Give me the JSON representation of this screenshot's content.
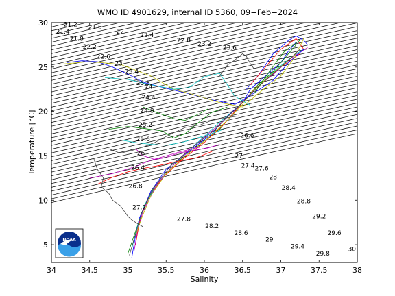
{
  "title": "WMO ID 4901629, internal ID 5360, 09−Feb−2024",
  "chart_data": {
    "type": "scatter",
    "title": "WMO ID 4901629, internal ID 5360, 09−Feb−2024",
    "xlabel": "Salinity",
    "ylabel": "Temperature [°C]",
    "xlim": [
      34,
      38
    ],
    "ylim": [
      3,
      30
    ],
    "xticks": [
      "34",
      "34.5",
      "35",
      "35.5",
      "36",
      "36.5",
      "37",
      "37.5",
      "38"
    ],
    "yticks": [
      "5",
      "10",
      "15",
      "20",
      "25",
      "30"
    ],
    "logo": "NOAA",
    "isopycnal_labels": [
      {
        "text": "21.2",
        "x": 34.25,
        "y": 29.8
      },
      {
        "text": "21.4",
        "x": 34.15,
        "y": 29.0
      },
      {
        "text": "21.6",
        "x": 34.57,
        "y": 29.5
      },
      {
        "text": "21.8",
        "x": 34.33,
        "y": 28.2
      },
      {
        "text": "22",
        "x": 34.9,
        "y": 29.0
      },
      {
        "text": "22.2",
        "x": 34.5,
        "y": 27.3
      },
      {
        "text": "22.4",
        "x": 35.25,
        "y": 28.6
      },
      {
        "text": "22.6",
        "x": 34.68,
        "y": 26.2
      },
      {
        "text": "22.8",
        "x": 35.73,
        "y": 28.0
      },
      {
        "text": "23",
        "x": 34.88,
        "y": 25.4
      },
      {
        "text": "23.2",
        "x": 36.0,
        "y": 27.6
      },
      {
        "text": "23.4",
        "x": 35.05,
        "y": 24.5
      },
      {
        "text": "23.6",
        "x": 36.33,
        "y": 27.2
      },
      {
        "text": "23.8",
        "x": 35.2,
        "y": 23.2
      },
      {
        "text": "24",
        "x": 35.27,
        "y": 22.8
      },
      {
        "text": "24.4",
        "x": 35.27,
        "y": 21.6
      },
      {
        "text": "24.8",
        "x": 35.25,
        "y": 20.1
      },
      {
        "text": "25.2",
        "x": 35.23,
        "y": 18.5
      },
      {
        "text": "25.6",
        "x": 35.2,
        "y": 16.9
      },
      {
        "text": "26",
        "x": 35.17,
        "y": 15.3
      },
      {
        "text": "26.4",
        "x": 35.13,
        "y": 13.7
      },
      {
        "text": "26.6",
        "x": 36.56,
        "y": 17.3
      },
      {
        "text": "27",
        "x": 36.45,
        "y": 15.0
      },
      {
        "text": "26.8",
        "x": 35.1,
        "y": 11.6
      },
      {
        "text": "27.4",
        "x": 36.57,
        "y": 13.9
      },
      {
        "text": "27.6",
        "x": 36.75,
        "y": 13.6
      },
      {
        "text": "28",
        "x": 36.9,
        "y": 12.6
      },
      {
        "text": "27.2",
        "x": 35.15,
        "y": 9.2
      },
      {
        "text": "28.4",
        "x": 37.1,
        "y": 11.4
      },
      {
        "text": "27.8",
        "x": 35.73,
        "y": 7.9
      },
      {
        "text": "28.8",
        "x": 37.3,
        "y": 9.9
      },
      {
        "text": "28.2",
        "x": 36.1,
        "y": 7.1
      },
      {
        "text": "29.2",
        "x": 37.5,
        "y": 8.2
      },
      {
        "text": "28.6",
        "x": 36.48,
        "y": 6.3
      },
      {
        "text": "29.6",
        "x": 37.7,
        "y": 6.3
      },
      {
        "text": "29",
        "x": 36.85,
        "y": 5.6
      },
      {
        "text": "29.4",
        "x": 37.22,
        "y": 4.8
      },
      {
        "text": "29.8",
        "x": 37.55,
        "y": 4.0
      },
      {
        "text": "30",
        "x": 37.93,
        "y": 4.5
      }
    ],
    "series": [
      {
        "color": "#0000ff",
        "x": [
          35.05,
          35.1,
          35.15,
          35.3,
          35.5,
          35.8,
          36.1,
          36.3,
          36.5,
          36.6,
          36.8,
          37.0,
          37.1,
          37.2
        ],
        "y": [
          3.5,
          6,
          8,
          11,
          13.5,
          15.5,
          17.5,
          19.5,
          21,
          22.5,
          24,
          25.5,
          26.8,
          27.8
        ]
      },
      {
        "color": "#008000",
        "x": [
          35.0,
          35.1,
          35.2,
          35.35,
          35.6,
          35.9,
          36.2,
          36.4,
          36.55,
          36.7,
          36.9,
          37.05,
          37.2
        ],
        "y": [
          4,
          6.5,
          9,
          11.5,
          14,
          16,
          18,
          20,
          21.5,
          23,
          24.5,
          26,
          27.5
        ]
      },
      {
        "color": "#ff0000",
        "x": [
          35.1,
          35.15,
          35.25,
          35.45,
          35.7,
          36.0,
          36.25,
          36.45,
          36.6,
          36.8,
          37.0,
          37.25
        ],
        "y": [
          5,
          7.5,
          10,
          12.5,
          14.5,
          16.5,
          18.5,
          20.5,
          22,
          23.5,
          25,
          26.5
        ]
      },
      {
        "color": "#00bfbf",
        "x": [
          35.05,
          35.12,
          35.22,
          35.4,
          35.65,
          35.95,
          36.2,
          36.42,
          36.58,
          36.75,
          36.95,
          37.15,
          37.3
        ],
        "y": [
          4.5,
          7,
          9.5,
          12,
          14.5,
          16.8,
          18.8,
          20.3,
          21.8,
          23.2,
          24.8,
          26.2,
          27
        ]
      },
      {
        "color": "#bf00bf",
        "x": [
          35.08,
          35.13,
          35.2,
          35.38,
          35.6,
          35.85,
          36.15,
          36.38,
          36.56,
          36.72,
          36.92,
          37.1,
          37.35
        ],
        "y": [
          4.2,
          6.8,
          8.8,
          11.8,
          14,
          16,
          18.2,
          20,
          21.6,
          23,
          24.3,
          25.8,
          27.2
        ]
      },
      {
        "color": "#bfbf00",
        "x": [
          35.1,
          35.18,
          35.3,
          35.5,
          35.75,
          36.05,
          36.3,
          36.5,
          36.62,
          36.8,
          37.02,
          37.2,
          37.3
        ],
        "y": [
          6,
          8,
          10.5,
          13,
          15,
          17,
          19,
          20.8,
          22.2,
          23.6,
          25.2,
          26.5,
          28.2
        ]
      },
      {
        "color": "#404040",
        "x": [
          35.02,
          35.1,
          35.18,
          35.32,
          35.55,
          35.82,
          36.12,
          36.35,
          36.52,
          36.68,
          36.88,
          37.08,
          37.25
        ],
        "y": [
          3.8,
          6.2,
          8.6,
          11.2,
          13.8,
          15.8,
          17.8,
          19.8,
          21.2,
          22.6,
          24.1,
          25.6,
          27
        ]
      },
      {
        "color": "#0000ff",
        "x": [
          34.2,
          34.4,
          34.6,
          34.8,
          35.0,
          35.2,
          35.5,
          35.8,
          36.1,
          36.4,
          36.6,
          36.9,
          37.1,
          37.3
        ],
        "y": [
          25.5,
          25.7,
          25.6,
          25.0,
          24.2,
          23.3,
          22.6,
          22.0,
          21.3,
          20.8,
          21.8,
          23.5,
          25.5,
          27
        ]
      },
      {
        "color": "#bfbf00",
        "x": [
          34.1,
          34.5,
          34.9,
          35.3,
          35.6,
          35.9,
          36.2,
          36.5,
          36.7,
          37.0,
          37.2
        ],
        "y": [
          25.3,
          25.6,
          25.3,
          24.0,
          22.5,
          21.8,
          21.0,
          20.5,
          22,
          24,
          26.3
        ]
      },
      {
        "color": "#00bfbf",
        "x": [
          34.7,
          35.0,
          35.3,
          35.6,
          35.8,
          36.0,
          36.2,
          36.4,
          36.6
        ],
        "y": [
          23.8,
          23.6,
          23.0,
          22.5,
          22.7,
          23.9,
          24.3,
          21.7,
          20.7
        ]
      },
      {
        "color": "#008000",
        "x": [
          34.75,
          35.0,
          35.2,
          35.45,
          35.6,
          35.75,
          35.9,
          36.1,
          36.3
        ],
        "y": [
          18.0,
          18.3,
          18.1,
          17.8,
          17.0,
          17.5,
          18.6,
          19.9,
          20.5
        ]
      },
      {
        "color": "#008000",
        "x": [
          35.2,
          35.4,
          35.6,
          35.75,
          35.95,
          36.05
        ],
        "y": [
          20.5,
          19.8,
          19.2,
          19.0,
          19.8,
          20.3
        ]
      },
      {
        "color": "#ff0000",
        "x": [
          34.6,
          34.8,
          35.0,
          35.2,
          35.4,
          35.6,
          35.9,
          36.1
        ],
        "y": [
          11.8,
          12.6,
          13.2,
          13.6,
          13.9,
          14.3,
          14.8,
          15.5
        ]
      },
      {
        "color": "#bf00bf",
        "x": [
          34.5,
          34.8,
          35.1,
          35.3,
          35.5,
          35.7,
          35.95
        ],
        "y": [
          12.5,
          13.0,
          13.8,
          14.5,
          15.0,
          15.5,
          16.0
        ]
      },
      {
        "color": "#404040",
        "x": [
          34.55,
          34.6,
          34.68,
          34.65,
          34.75,
          34.8,
          34.9,
          34.95,
          35.0,
          35.05,
          35.12,
          35.2
        ],
        "y": [
          14.8,
          13.5,
          12.5,
          11.5,
          10.8,
          10.0,
          9.4,
          8.8,
          8.2,
          7.8,
          7.4,
          7.0
        ]
      },
      {
        "color": "#404040",
        "x": [
          34.75,
          34.9,
          35.05,
          35.2,
          35.35,
          35.55,
          35.75,
          35.95,
          36.1,
          36.3,
          36.45
        ],
        "y": [
          15.8,
          15.3,
          15.6,
          16.0,
          16.5,
          17.4,
          18.2,
          18.5,
          19.0,
          19.3,
          19.5
        ]
      },
      {
        "color": "#404040",
        "x": [
          36.2,
          36.3,
          36.4,
          36.5,
          36.55,
          36.6,
          36.65
        ],
        "y": [
          24.0,
          25.2,
          25.8,
          26.5,
          26.2,
          25.4,
          24.8
        ]
      },
      {
        "color": "#bf00bf",
        "x": [
          35.1,
          35.2,
          35.35,
          35.5,
          35.65,
          35.85,
          36.05,
          36.2
        ],
        "y": [
          15.8,
          15.0,
          14.6,
          14.8,
          15.3,
          15.6,
          15.9,
          16.3
        ]
      },
      {
        "color": "#00bfbf",
        "x": [
          34.9,
          35.1,
          35.3,
          35.5,
          35.7,
          35.9,
          36.1,
          36.25
        ],
        "y": [
          16.8,
          16.5,
          16.3,
          16.2,
          16.5,
          17.0,
          17.5,
          18.0
        ]
      },
      {
        "color": "#0000ff",
        "x": [
          36.55,
          36.7,
          36.9,
          37.1,
          37.2,
          37.3,
          37.35
        ],
        "y": [
          22.5,
          24.0,
          26.5,
          28.0,
          28.5,
          28.0,
          27.5
        ]
      },
      {
        "color": "#ff0000",
        "x": [
          36.6,
          36.8,
          37.0,
          37.2,
          37.3
        ],
        "y": [
          23.0,
          25.0,
          27.0,
          28.2,
          27.0
        ]
      },
      {
        "color": "#008000",
        "x": [
          36.65,
          36.85,
          37.05,
          37.25
        ],
        "y": [
          22.0,
          24.5,
          26.8,
          28.0
        ]
      }
    ]
  }
}
